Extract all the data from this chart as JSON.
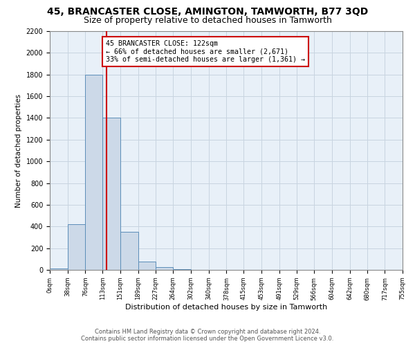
{
  "title": "45, BRANCASTER CLOSE, AMINGTON, TAMWORTH, B77 3QD",
  "subtitle": "Size of property relative to detached houses in Tamworth",
  "xlabel": "Distribution of detached houses by size in Tamworth",
  "ylabel": "Number of detached properties",
  "bin_edges": [
    0,
    38,
    76,
    113,
    151,
    189,
    227,
    264,
    302,
    340,
    378,
    415,
    453,
    491,
    529,
    566,
    604,
    642,
    680,
    717,
    755
  ],
  "bar_heights": [
    15,
    420,
    1800,
    1400,
    350,
    75,
    25,
    5,
    0,
    0,
    0,
    0,
    0,
    0,
    0,
    0,
    0,
    0,
    0,
    0
  ],
  "bar_color": "#ccd9e8",
  "bar_edge_color": "#5b8db8",
  "grid_color": "#c8d4e0",
  "ax_bg_color": "#e8f0f8",
  "property_line_x": 122,
  "property_line_color": "#cc0000",
  "annotation_text": "45 BRANCASTER CLOSE: 122sqm\n← 66% of detached houses are smaller (2,671)\n33% of semi-detached houses are larger (1,361) →",
  "annotation_box_color": "#ffffff",
  "annotation_box_edge_color": "#cc0000",
  "ylim": [
    0,
    2200
  ],
  "yticks": [
    0,
    200,
    400,
    600,
    800,
    1000,
    1200,
    1400,
    1600,
    1800,
    2000,
    2200
  ],
  "footer_line1": "Contains HM Land Registry data © Crown copyright and database right 2024.",
  "footer_line2": "Contains public sector information licensed under the Open Government Licence v3.0.",
  "background_color": "#ffffff",
  "fig_width": 6.0,
  "fig_height": 5.0,
  "title_fontsize": 10,
  "subtitle_fontsize": 9
}
